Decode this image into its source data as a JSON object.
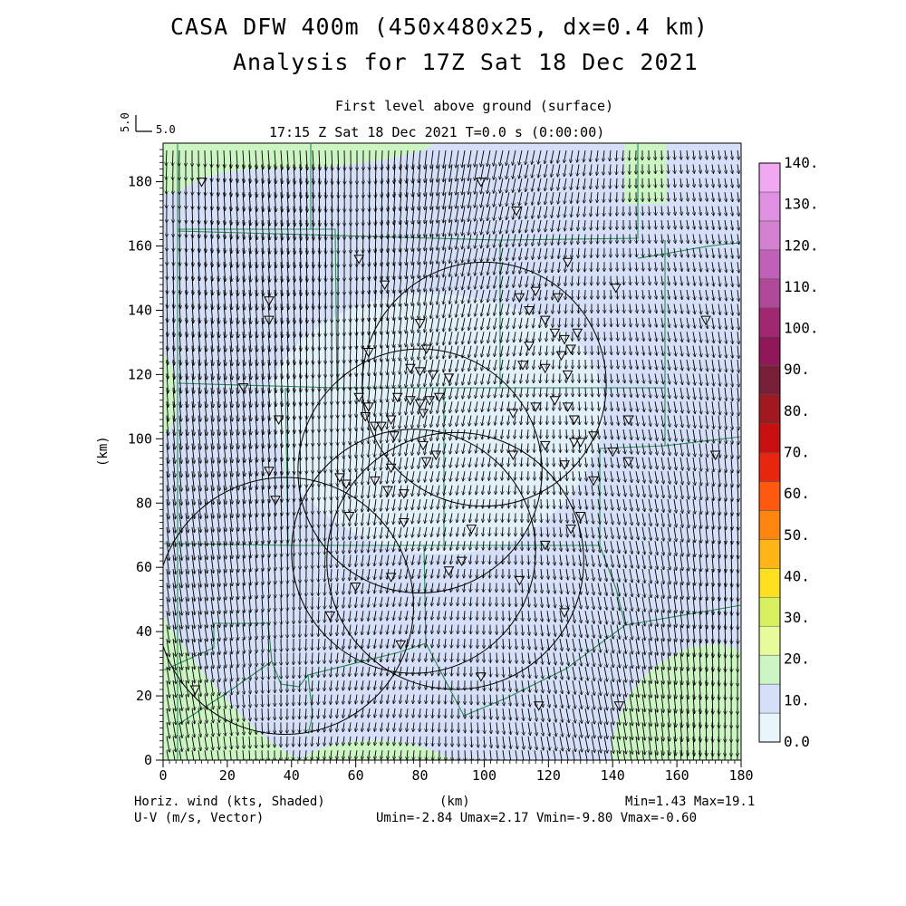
{
  "header": {
    "title_line1": "CASA DFW 400m (450x480x25, dx=0.4 km)",
    "title_line2": "Analysis for 17Z Sat 18 Dec 2021",
    "level": "First level above ground (surface)",
    "valid_time": "17:15 Z Sat 18 Dec 2021    T=0.0 s (0:00:00)",
    "ref_vector_label_vertical": "5.0",
    "ref_vector_label_horizontal": "5.0"
  },
  "axes": {
    "x_label": "(km)",
    "y_label": "(km)",
    "x_ticks": [
      "0",
      "20",
      "40",
      "60",
      "80",
      "100",
      "120",
      "140",
      "160",
      "180"
    ],
    "y_ticks": [
      "0",
      "20",
      "40",
      "60",
      "80",
      "100",
      "120",
      "140",
      "160",
      "180"
    ],
    "xlim": [
      0,
      180
    ],
    "ylim": [
      0,
      192
    ]
  },
  "colorbar": {
    "levels": [
      "0.0",
      "10.",
      "20.",
      "30.",
      "40.",
      "50.",
      "60.",
      "70.",
      "80.",
      "90.",
      "100.",
      "110.",
      "120.",
      "130.",
      "140."
    ],
    "colors": [
      "#e6f6fa",
      "#d5e0f8",
      "#cdf5c4",
      "#e8fb9a",
      "#d8f060",
      "#ffe020",
      "#ffb418",
      "#ff8410",
      "#ff5a10",
      "#e8260e",
      "#c81010",
      "#a01820",
      "#782038",
      "#901858",
      "#a02870",
      "#b04a98",
      "#c060b8",
      "#d480d0",
      "#e090e0",
      "#f0a8f0"
    ],
    "series_name": "Horiz. wind (kts, Shaded)"
  },
  "footer": {
    "left_line1": "Horiz. wind (kts, Shaded)",
    "left_line2": "U-V (m/s, Vector)",
    "center": "(km)",
    "right_line1": "Min=1.43 Max=19.1",
    "right_line2": "Umin=-2.84 Umax=2.17 Vmin=-9.80 Vmax=-0.60"
  },
  "chart_data": {
    "type": "heatmap",
    "field": "Horizontal wind speed (kts) with U-V wind vectors",
    "min": 1.43,
    "max": 19.1,
    "umin": -2.84,
    "umax": 2.17,
    "vmin": -9.8,
    "vmax": -0.6,
    "radar_circles_km": [
      {
        "cx": 80,
        "cy": 90,
        "r": 38
      },
      {
        "cx": 100,
        "cy": 117,
        "r": 38
      },
      {
        "cx": 78,
        "cy": 65,
        "r": 38
      },
      {
        "cx": 38,
        "cy": 48,
        "r": 40
      },
      {
        "cx": 91,
        "cy": 62,
        "r": 40
      }
    ],
    "stations_km": [
      [
        12,
        180
      ],
      [
        99,
        180
      ],
      [
        110,
        171
      ],
      [
        61,
        156
      ],
      [
        69,
        148
      ],
      [
        33,
        143
      ],
      [
        33,
        137
      ],
      [
        126,
        155
      ],
      [
        141,
        147
      ],
      [
        111,
        144
      ],
      [
        116,
        146
      ],
      [
        114,
        140
      ],
      [
        123,
        144
      ],
      [
        169,
        137
      ],
      [
        80,
        136
      ],
      [
        114,
        129
      ],
      [
        119,
        137
      ],
      [
        122,
        133
      ],
      [
        125,
        131
      ],
      [
        127,
        128
      ],
      [
        129,
        133
      ],
      [
        124,
        126
      ],
      [
        126,
        120
      ],
      [
        119,
        122
      ],
      [
        112,
        123
      ],
      [
        82,
        128
      ],
      [
        64,
        127
      ],
      [
        77,
        122
      ],
      [
        80,
        121
      ],
      [
        84,
        120
      ],
      [
        89,
        119
      ],
      [
        25,
        116
      ],
      [
        73,
        113
      ],
      [
        77,
        112
      ],
      [
        80,
        111
      ],
      [
        83,
        112
      ],
      [
        86,
        113
      ],
      [
        61,
        113
      ],
      [
        64,
        110
      ],
      [
        63,
        107
      ],
      [
        66,
        104
      ],
      [
        68,
        104
      ],
      [
        71,
        106
      ],
      [
        36,
        106
      ],
      [
        81,
        108
      ],
      [
        109,
        108
      ],
      [
        116,
        110
      ],
      [
        122,
        112
      ],
      [
        126,
        110
      ],
      [
        128,
        106
      ],
      [
        119,
        98
      ],
      [
        130,
        99
      ],
      [
        128,
        99
      ],
      [
        134,
        101
      ],
      [
        145,
        106
      ],
      [
        145,
        93
      ],
      [
        140,
        96
      ],
      [
        125,
        92
      ],
      [
        134,
        87
      ],
      [
        109,
        95
      ],
      [
        72,
        101
      ],
      [
        81,
        98
      ],
      [
        85,
        95
      ],
      [
        71,
        91
      ],
      [
        82,
        93
      ],
      [
        66,
        87
      ],
      [
        70,
        84
      ],
      [
        75,
        83
      ],
      [
        55,
        88
      ],
      [
        57,
        86
      ],
      [
        35,
        81
      ],
      [
        58,
        76
      ],
      [
        75,
        74
      ],
      [
        96,
        72
      ],
      [
        130,
        76
      ],
      [
        127,
        72
      ],
      [
        119,
        67
      ],
      [
        93,
        62
      ],
      [
        89,
        59
      ],
      [
        71,
        57
      ],
      [
        60,
        54
      ],
      [
        52,
        45
      ],
      [
        74,
        36
      ],
      [
        111,
        56
      ],
      [
        125,
        46
      ],
      [
        99,
        26
      ],
      [
        117,
        17
      ],
      [
        142,
        17
      ],
      [
        10,
        22
      ],
      [
        33,
        90
      ],
      [
        172,
        95
      ]
    ]
  }
}
